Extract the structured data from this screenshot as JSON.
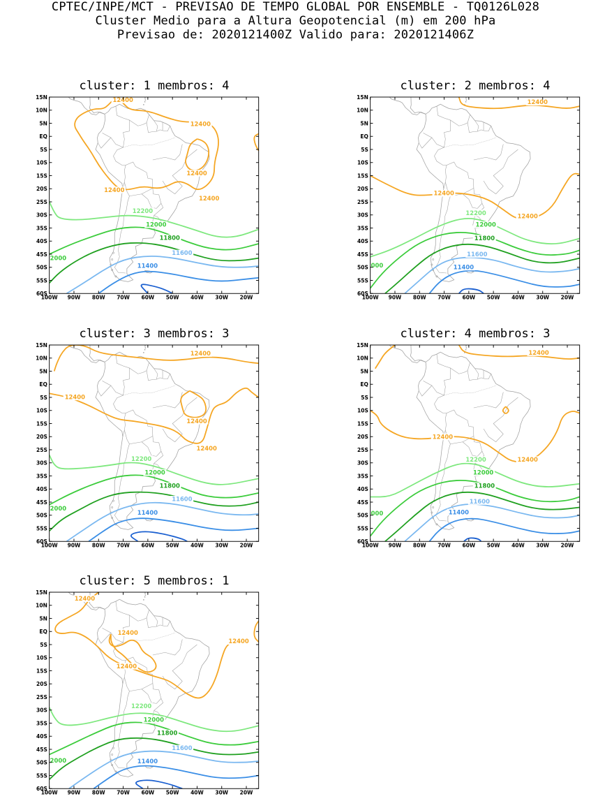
{
  "header": {
    "line1": "CPTEC/INPE/MCT - PREVISAO DE TEMPO GLOBAL POR ENSEMBLE - TQ0126L028",
    "line2": "Cluster Medio para a Altura Geopotencial (m) em 200 hPa",
    "line3": "Previsao de: 2020121400Z    Valido para: 2020121406Z"
  },
  "axes": {
    "lat_ticks": [
      "15N",
      "10N",
      "5N",
      "EQ",
      "5S",
      "10S",
      "15S",
      "20S",
      "25S",
      "30S",
      "35S",
      "40S",
      "45S",
      "50S",
      "55S",
      "60S"
    ],
    "lon_ticks": [
      "100W",
      "90W",
      "80W",
      "70W",
      "60W",
      "50W",
      "40W",
      "30W",
      "20W"
    ]
  },
  "colors": {
    "c12400": "#f5a623",
    "c12200": "#7ee87e",
    "c12000": "#3ccc3c",
    "c11800": "#1fa01f",
    "c11600": "#7ab8f0",
    "c11400": "#3a8ee6",
    "c11200": "#1a5fd0",
    "coast": "#a0a0a0"
  },
  "panels": [
    {
      "title": "cluster: 1   membros: 4",
      "labels": {
        "a": "12400",
        "b": "12400",
        "c": "12400",
        "d": "12400",
        "e": "12400",
        "f": "12200",
        "g": "12000",
        "h": "11800",
        "i": "11600",
        "j": "11400",
        "k": "2000"
      }
    },
    {
      "title": "cluster: 2   membros: 4",
      "labels": {
        "a": "12400",
        "b": "12400",
        "c": "12400",
        "f": "12200",
        "g": "12000",
        "h": "11800",
        "i": "11600",
        "j": "11400",
        "k": "000"
      }
    },
    {
      "title": "cluster: 3   membros: 3",
      "labels": {
        "a": "12400",
        "b": "12400",
        "c": "12400",
        "d": "12400",
        "f": "12200",
        "g": "12000",
        "h": "11800",
        "i": "11600",
        "j": "11400",
        "k": "2000"
      }
    },
    {
      "title": "cluster: 4   membros: 3",
      "labels": {
        "a": "12400",
        "b": "12400",
        "c": "12400",
        "f": "12200",
        "g": "12000",
        "h": "11800",
        "i": "11600",
        "j": "11400",
        "k": "000"
      }
    },
    {
      "title": "cluster: 5   membros: 1",
      "labels": {
        "a": "12400",
        "b": "12400",
        "c": "12400",
        "d": "12400",
        "f": "12200",
        "g": "12000",
        "h": "11800",
        "i": "11600",
        "j": "11400",
        "k": "2000"
      }
    }
  ]
}
